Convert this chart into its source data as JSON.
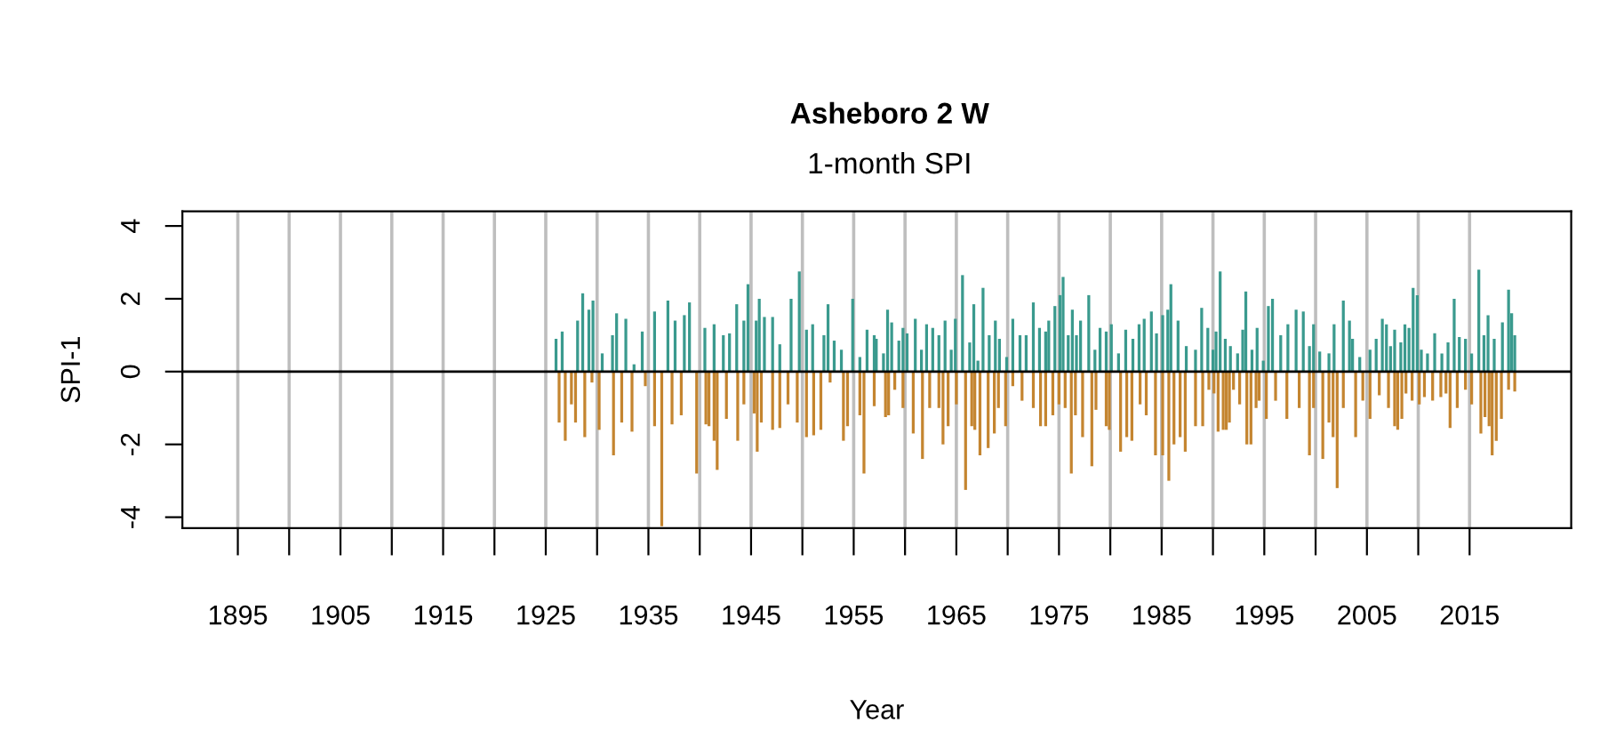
{
  "chart_data": {
    "type": "bar",
    "title": "Asheboro 2 W",
    "subtitle": "1-month SPI",
    "xlabel": "Year",
    "ylabel": "SPI-1",
    "xlim": [
      1889.6,
      2024.9
    ],
    "ylim": [
      -4.3,
      4.4
    ],
    "xticks": [
      1895,
      {
        "value": 1900,
        "label": null
      },
      1905,
      {
        "value": 1910,
        "label": null
      },
      1915,
      {
        "value": 1920,
        "label": null
      },
      1925,
      {
        "value": 1930,
        "label": null
      },
      1935,
      {
        "value": 1940,
        "label": null
      },
      1945,
      {
        "value": 1950,
        "label": null
      },
      1955,
      {
        "value": 1960,
        "label": null
      },
      1965,
      {
        "value": 1970,
        "label": null
      },
      1975,
      {
        "value": 1980,
        "label": null
      },
      1985,
      {
        "value": 1990,
        "label": null
      },
      1995,
      {
        "value": 2000,
        "label": null
      },
      2005,
      {
        "value": 2010,
        "label": null
      },
      2015
    ],
    "yticks": [
      -4,
      -2,
      0,
      2,
      4
    ],
    "grid": "x",
    "ref_lines": [
      {
        "axis": "y",
        "value": 0,
        "color": "#000000"
      }
    ],
    "series": [
      {
        "color": "#3a9a8e",
        "x": [
          1926.0,
          1926.6,
          1928.1,
          1928.6,
          1929.2,
          1929.6,
          1930.5,
          1931.5,
          1931.9,
          1932.8,
          1933.6,
          1934.4,
          1935.6,
          1936.9,
          1937.6,
          1938.5,
          1939.0,
          1940.5,
          1941.4,
          1942.3,
          1942.9,
          1943.6,
          1944.3,
          1944.7,
          1945.5,
          1945.8,
          1946.3,
          1947.1,
          1947.8,
          1948.9,
          1949.7,
          1950.4,
          1951.0,
          1952.1,
          1952.5,
          1953.1,
          1953.8,
          1954.9,
          1955.6,
          1956.3,
          1957.0,
          1957.2,
          1957.9,
          1958.3,
          1958.7,
          1959.4,
          1959.8,
          1960.2,
          1961.0,
          1961.6,
          1962.1,
          1962.7,
          1963.3,
          1963.9,
          1964.5,
          1964.9,
          1965.6,
          1966.3,
          1966.7,
          1967.1,
          1967.6,
          1968.2,
          1968.8,
          1969.2,
          1969.9,
          1970.5,
          1971.2,
          1971.8,
          1972.5,
          1973.1,
          1973.7,
          1974.0,
          1974.6,
          1975.1,
          1975.4,
          1975.9,
          1976.3,
          1976.7,
          1977.1,
          1977.9,
          1978.5,
          1979.0,
          1979.6,
          1980.1,
          1980.8,
          1981.5,
          1982.2,
          1982.8,
          1983.3,
          1984.0,
          1984.5,
          1985.1,
          1985.6,
          1985.9,
          1986.6,
          1987.4,
          1988.3,
          1988.9,
          1989.5,
          1990.0,
          1990.3,
          1990.7,
          1991.2,
          1991.7,
          1992.4,
          1992.9,
          1993.2,
          1993.8,
          1994.3,
          1994.9,
          1995.4,
          1995.8,
          1996.6,
          1997.3,
          1998.1,
          1998.8,
          1999.4,
          1999.8,
          2000.4,
          2001.3,
          2001.8,
          2002.7,
          2003.3,
          2003.6,
          2004.3,
          2005.3,
          2005.9,
          2006.5,
          2006.9,
          2007.3,
          2007.7,
          2008.3,
          2008.7,
          2009.1,
          2009.5,
          2009.9,
          2010.3,
          2010.9,
          2011.6,
          2012.3,
          2012.9,
          2013.5,
          2014.0,
          2014.6,
          2015.2,
          2015.9,
          2016.4,
          2016.8,
          2017.4,
          2018.2,
          2018.8,
          2019.1,
          2019.4
        ],
        "values": [
          0.9,
          1.1,
          1.4,
          2.15,
          1.7,
          1.95,
          0.5,
          1.0,
          1.6,
          1.45,
          0.2,
          1.1,
          1.65,
          1.95,
          1.4,
          1.55,
          1.9,
          1.2,
          1.3,
          1.0,
          1.05,
          1.85,
          1.4,
          2.4,
          1.4,
          2.0,
          1.5,
          1.5,
          0.75,
          2.0,
          2.75,
          1.15,
          1.3,
          1.0,
          1.85,
          0.85,
          0.6,
          2.0,
          0.4,
          1.15,
          1.0,
          0.9,
          0.5,
          1.7,
          1.35,
          0.85,
          1.2,
          1.05,
          1.45,
          0.6,
          1.3,
          1.2,
          1.0,
          1.4,
          0.6,
          1.45,
          2.65,
          0.8,
          1.85,
          0.3,
          2.3,
          1.0,
          1.4,
          0.9,
          0.4,
          1.45,
          1.0,
          1.0,
          1.9,
          1.2,
          1.1,
          1.4,
          1.8,
          2.1,
          2.6,
          1.0,
          1.7,
          1.0,
          1.4,
          2.1,
          0.6,
          1.2,
          1.1,
          1.3,
          0.5,
          1.15,
          0.9,
          1.3,
          1.45,
          1.65,
          1.05,
          1.55,
          1.7,
          2.4,
          1.4,
          0.7,
          0.6,
          1.75,
          1.2,
          0.6,
          1.1,
          2.75,
          0.9,
          0.7,
          0.5,
          1.15,
          2.2,
          0.6,
          1.2,
          0.3,
          1.8,
          2.0,
          1.0,
          1.3,
          1.7,
          1.65,
          0.7,
          1.3,
          0.55,
          0.5,
          1.3,
          1.95,
          1.4,
          0.9,
          0.4,
          0.6,
          0.9,
          1.45,
          1.3,
          0.7,
          1.15,
          0.8,
          1.3,
          1.2,
          2.3,
          2.1,
          0.6,
          0.5,
          1.05,
          0.5,
          0.8,
          2.0,
          0.95,
          0.9,
          0.5,
          2.8,
          1.0,
          1.55,
          0.9,
          1.35,
          2.25,
          1.6,
          1.0
        ]
      },
      {
        "color": "#c48530",
        "x": [
          1926.3,
          1926.9,
          1927.5,
          1927.9,
          1928.8,
          1929.5,
          1930.2,
          1931.6,
          1932.4,
          1933.4,
          1934.7,
          1935.6,
          1936.3,
          1937.3,
          1938.2,
          1939.7,
          1940.6,
          1940.9,
          1941.4,
          1941.7,
          1942.6,
          1943.7,
          1944.3,
          1945.3,
          1945.6,
          1946.0,
          1947.1,
          1947.8,
          1948.6,
          1949.5,
          1950.4,
          1951.1,
          1951.8,
          1952.7,
          1954.0,
          1954.4,
          1955.6,
          1956.0,
          1957.0,
          1958.1,
          1958.4,
          1959.0,
          1959.8,
          1960.8,
          1961.7,
          1962.4,
          1963.3,
          1963.7,
          1964.2,
          1965.0,
          1965.9,
          1966.5,
          1966.8,
          1967.3,
          1968.1,
          1968.7,
          1969.1,
          1969.8,
          1970.5,
          1971.4,
          1972.5,
          1973.2,
          1973.7,
          1974.4,
          1975.0,
          1975.6,
          1976.2,
          1976.6,
          1977.3,
          1978.2,
          1978.6,
          1979.6,
          1979.9,
          1981.0,
          1981.6,
          1982.1,
          1982.9,
          1983.5,
          1984.4,
          1985.1,
          1985.7,
          1986.2,
          1986.8,
          1987.3,
          1988.3,
          1989.0,
          1989.6,
          1990.1,
          1990.5,
          1991.0,
          1991.3,
          1991.6,
          1992.0,
          1992.6,
          1993.3,
          1993.7,
          1994.2,
          1994.5,
          1995.2,
          1996.1,
          1997.2,
          1998.4,
          1999.4,
          1999.8,
          2000.7,
          2001.3,
          2001.7,
          2002.1,
          2002.7,
          2003.9,
          2004.6,
          2005.3,
          2006.2,
          2007.1,
          2007.7,
          2008.0,
          2008.4,
          2008.8,
          2009.4,
          2010.1,
          2010.6,
          2011.4,
          2012.2,
          2012.7,
          2013.1,
          2013.8,
          2014.6,
          2015.2,
          2016.1,
          2016.5,
          2016.9,
          2017.2,
          2017.6,
          2018.1,
          2018.8,
          2019.4
        ],
        "values": [
          -1.4,
          -1.9,
          -0.9,
          -1.4,
          -1.8,
          -0.3,
          -1.6,
          -2.3,
          -1.4,
          -1.65,
          -0.4,
          -1.5,
          -4.25,
          -1.45,
          -1.2,
          -2.8,
          -1.45,
          -1.5,
          -1.9,
          -2.7,
          -1.3,
          -1.9,
          -0.9,
          -1.15,
          -2.2,
          -1.4,
          -1.6,
          -1.55,
          -0.9,
          -1.4,
          -1.8,
          -1.75,
          -1.6,
          -0.3,
          -1.9,
          -1.5,
          -1.2,
          -2.8,
          -0.95,
          -1.25,
          -1.2,
          -0.5,
          -1.0,
          -1.7,
          -2.4,
          -1.0,
          -1.0,
          -2.0,
          -1.5,
          -0.9,
          -3.25,
          -1.5,
          -1.6,
          -2.3,
          -2.1,
          -1.7,
          -1.0,
          -1.5,
          -0.4,
          -0.8,
          -1.0,
          -1.5,
          -1.5,
          -1.2,
          -0.9,
          -1.0,
          -2.8,
          -1.2,
          -1.8,
          -2.6,
          -1.05,
          -1.5,
          -1.6,
          -2.2,
          -1.8,
          -1.9,
          -0.9,
          -1.2,
          -2.3,
          -2.3,
          -3.0,
          -2.0,
          -1.8,
          -2.2,
          -1.5,
          -1.5,
          -0.5,
          -0.6,
          -1.65,
          -1.6,
          -1.6,
          -1.4,
          -0.5,
          -0.9,
          -2.0,
          -2.0,
          -1.0,
          -0.8,
          -1.3,
          -0.8,
          -1.3,
          -1.0,
          -2.3,
          -1.0,
          -2.4,
          -1.4,
          -1.8,
          -3.2,
          -1.0,
          -1.8,
          -0.8,
          -1.3,
          -0.65,
          -1.0,
          -1.5,
          -1.6,
          -1.3,
          -0.6,
          -0.8,
          -0.9,
          -0.7,
          -0.8,
          -0.7,
          -0.6,
          -1.55,
          -1.0,
          -0.5,
          -0.9,
          -1.7,
          -1.25,
          -1.5,
          -2.3,
          -1.9,
          -1.3,
          -0.5,
          -0.55
        ]
      }
    ]
  }
}
